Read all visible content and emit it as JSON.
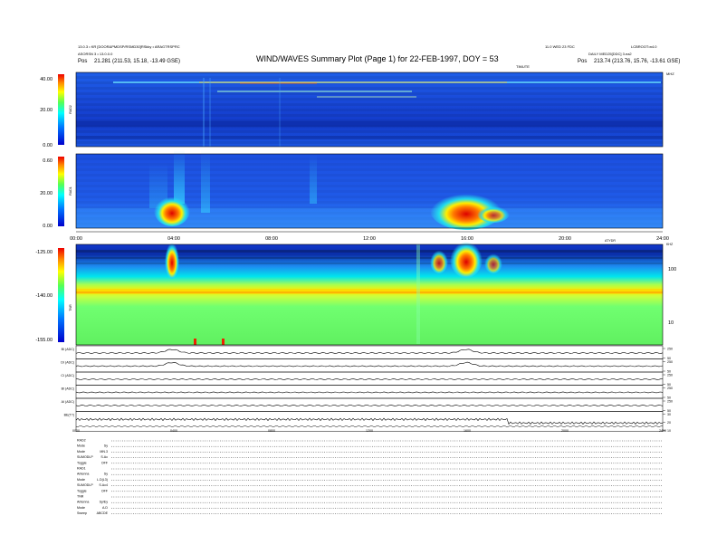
{
  "header": {
    "title": "WIND/WAVES Summary Plot (Page 1) for 22-FEB-1997, DOY = 53",
    "left_line1": "13.0.3 • KR [DOOR&PMDSP/RSMD30]RSkky • ARAGTRSPRC",
    "left_line2": "ASORSN 3 • 13.0.0.0",
    "left_line3": "Pos",
    "left_line3_val": "21.281 (211.53, 15.18, -13.49 GSE)",
    "right_line1": "11.0 WED 23 FDC",
    "right_line1b": "LCBROOT•n4.0",
    "right_line2": "DAILY MED25[DDC] 3.ea2",
    "right_line3": "Pos",
    "right_line3_val": "213.74 (213.76, 15.76, -13.61 GSE)",
    "time_unit_label": "TIMUTE",
    "mhz_label": "MHZ"
  },
  "panels": {
    "rad2": {
      "name": "RAD2",
      "ticks": [
        "40.00",
        "20.00",
        "0.00"
      ]
    },
    "rad1": {
      "name": "RAD1",
      "ticks": [
        "0.60",
        "20.00",
        "0.00"
      ]
    },
    "tnr": {
      "name": "TNR",
      "ticks": [
        "-125.00",
        "-140.00",
        "-155.00"
      ],
      "right_ticks": [
        "100",
        "10"
      ],
      "khz_label": "KHZ"
    },
    "line_plots": [
      {
        "label": "BI (ADC)",
        "ticks": [
          "250",
          "50"
        ]
      },
      {
        "label": "DI (ADC)",
        "ticks": [
          "250",
          "50"
        ]
      },
      {
        "label": "CI (ADC)",
        "ticks": [
          "250",
          "50"
        ]
      },
      {
        "label": "BI (ADC)",
        "ticks": [
          "250",
          "50"
        ]
      },
      {
        "label": "AI (ADC)",
        "ticks": [
          "250",
          "50"
        ]
      },
      {
        "label": "BE(T?)",
        "ticks": [
          "30",
          "20",
          "10"
        ]
      }
    ]
  },
  "time_axis": {
    "ticks_mid": [
      "00:00",
      "04:00",
      "08:00",
      "12:00",
      "16:00",
      "20:00",
      "24:00"
    ],
    "ticks_bottom": [
      "0000",
      "0400",
      "0800",
      "1200",
      "1600",
      "2000",
      "2400"
    ],
    "unit_label": "ATYDR"
  },
  "footer": {
    "rows": [
      {
        "label": "RAD2",
        "value": ""
      },
      {
        "label": "Mode",
        "value": "Sy"
      },
      {
        "label": "Mode",
        "value": "MN.3"
      },
      {
        "label": "SUMODLP",
        "value": "S.Ac"
      },
      {
        "label": "Toggle",
        "value": "OFF"
      },
      {
        "label": "RAD1",
        "value": ""
      },
      {
        "label": "Antenna",
        "value": "Sy"
      },
      {
        "label": "Mode",
        "value": "L.D(L3)"
      },
      {
        "label": "SUMODLP",
        "value": "S.Ac4"
      },
      {
        "label": "Toggle",
        "value": "OFF"
      },
      {
        "label": "TNR",
        "value": ""
      },
      {
        "label": "Antenna",
        "value": "Sy/Ey"
      },
      {
        "label": "Mode",
        "value": "A.D"
      },
      {
        "label": "Sweep",
        "value": "ABCDE"
      }
    ]
  },
  "chart_data": [
    {
      "type": "heatmap",
      "name": "RAD2",
      "x_range_hours": [
        0,
        24
      ],
      "y_range_mhz": [
        0,
        40
      ],
      "color_scale": "blue-cyan-yellow-red",
      "features": [
        {
          "kind": "horizontal-line",
          "y_mhz": 37.5,
          "x_hours": [
            4,
            18
          ]
        },
        {
          "kind": "horizontal-line",
          "y_mhz": 27.5,
          "x_hours": [
            6,
            14
          ]
        }
      ]
    },
    {
      "type": "heatmap",
      "name": "RAD1",
      "x_range_hours": [
        0,
        24
      ],
      "y_range_mhz": [
        0,
        0.6
      ],
      "bursts": [
        {
          "x_hours": 3.9,
          "intensity": "high"
        },
        {
          "x_hours": 15.8,
          "intensity": "high"
        }
      ]
    },
    {
      "type": "heatmap",
      "name": "TNR",
      "x_range_hours": [
        0,
        24
      ],
      "y_range": [
        -155,
        -125
      ],
      "bands": [
        {
          "kind": "yellow-band",
          "level": -137
        },
        {
          "kind": "cyan-band",
          "level": -132
        }
      ],
      "bursts": [
        {
          "x_hours": 3.9
        },
        {
          "x_hours": 15.8
        }
      ]
    },
    {
      "type": "line",
      "name": "ADC traces",
      "x_range_hours": [
        0,
        24
      ],
      "series": [
        {
          "name": "BI (ADC)"
        },
        {
          "name": "DI (ADC)"
        },
        {
          "name": "CI (ADC)"
        },
        {
          "name": "BI (ADC)"
        },
        {
          "name": "AI (ADC)"
        },
        {
          "name": "BE(T?)"
        }
      ]
    }
  ]
}
